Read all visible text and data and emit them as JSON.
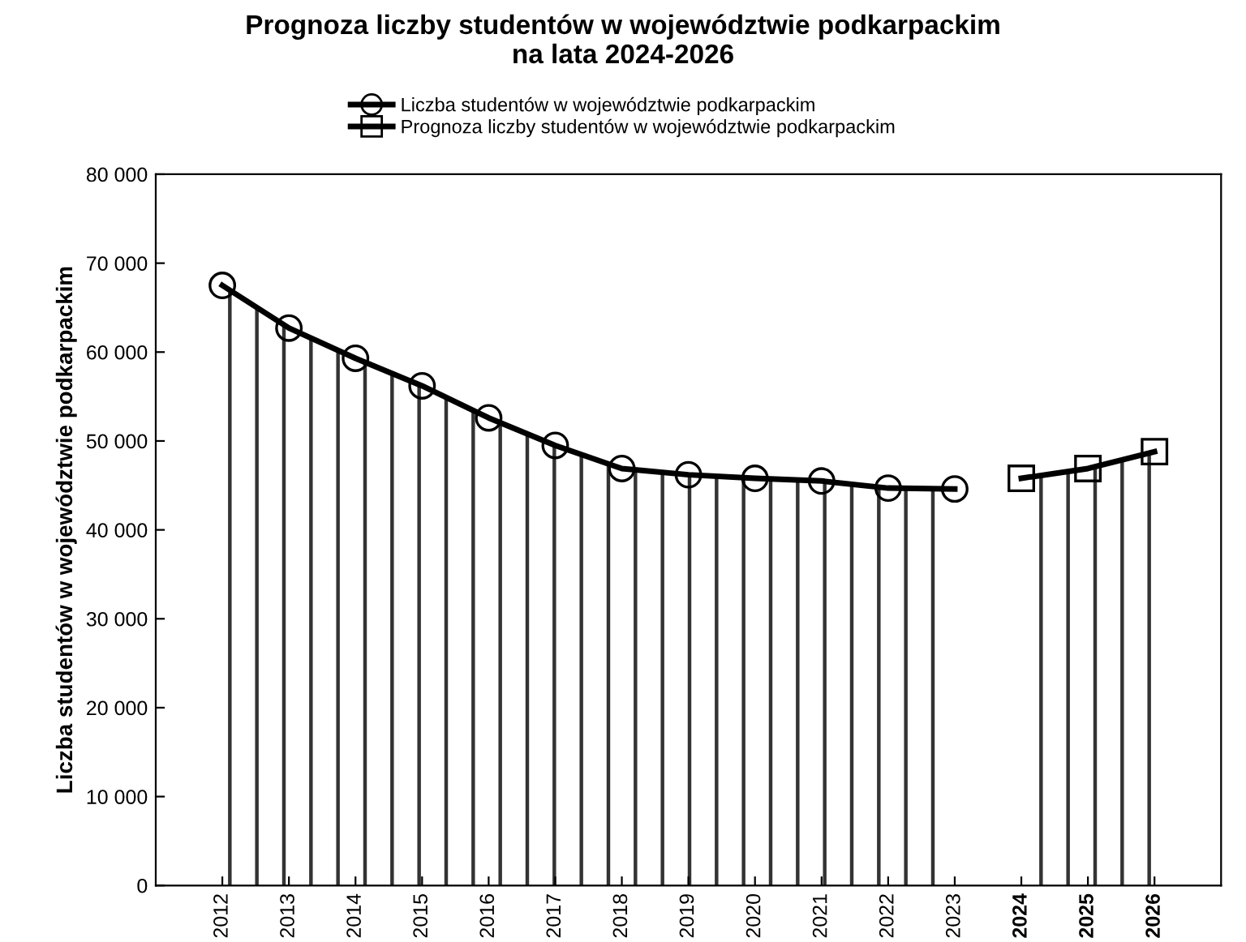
{
  "chart_data": {
    "type": "area",
    "title": "Prognoza liczby studentów w województwie podkarpackim\nna lata 2024-2026",
    "ylabel": "Liczba studentów w województwie podkarpackim",
    "categories": [
      "2012",
      "2013",
      "2014",
      "2015",
      "2016",
      "2017",
      "2018",
      "2019",
      "2020",
      "2021",
      "2022",
      "2023",
      "2024",
      "2025",
      "2026"
    ],
    "series": [
      {
        "name": "Liczba studentów w województwie podkarpackim",
        "color": "#000000",
        "marker": "circle",
        "values": [
          67500,
          62700,
          59300,
          56200,
          52600,
          49500,
          46900,
          46200,
          45800,
          45500,
          44700,
          44600,
          null,
          null,
          null
        ]
      },
      {
        "name": "Prognoza liczby studentów w województwie podkarpackim",
        "color": "#000000",
        "marker": "square",
        "values": [
          null,
          null,
          null,
          null,
          null,
          null,
          null,
          null,
          null,
          null,
          null,
          null,
          45800,
          46900,
          48800
        ]
      }
    ],
    "ylim": [
      0,
      80000
    ],
    "yticks": [
      {
        "value": 0,
        "label": "0"
      },
      {
        "value": 10000,
        "label": "10 000"
      },
      {
        "value": 20000,
        "label": "20 000"
      },
      {
        "value": 30000,
        "label": "30 000"
      },
      {
        "value": 40000,
        "label": "40 000"
      },
      {
        "value": 50000,
        "label": "50 000"
      },
      {
        "value": 60000,
        "label": "60 000"
      },
      {
        "value": 70000,
        "label": "70 000"
      },
      {
        "value": 80000,
        "label": "80 000"
      }
    ],
    "grid": false,
    "legend": "top"
  }
}
